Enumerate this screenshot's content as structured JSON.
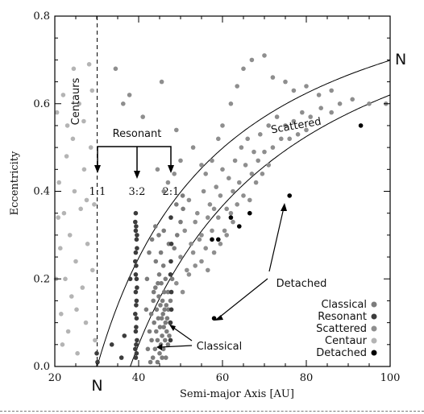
{
  "chart_data": {
    "type": "scatter",
    "title": "",
    "xlabel": "Semi-major Axis [AU]",
    "ylabel": "Eccentricity",
    "xlim": [
      20,
      100
    ],
    "ylim": [
      0.0,
      0.8
    ],
    "xticks": [
      "20",
      "40",
      "60",
      "80",
      "100"
    ],
    "yticks": [
      "0.0",
      "0.2",
      "0.4",
      "0.6",
      "0.8"
    ],
    "legend_position": "bottom-right",
    "neptune_a": 30.1,
    "series": [
      {
        "name": "Classical",
        "color": "#7c7c7c",
        "points": [
          [
            42.2,
            0.04
          ],
          [
            42.6,
            0.08
          ],
          [
            43.0,
            0.12
          ],
          [
            43.1,
            0.06
          ],
          [
            43.4,
            0.02
          ],
          [
            43.5,
            0.15
          ],
          [
            43.7,
            0.1
          ],
          [
            43.9,
            0.04
          ],
          [
            44.0,
            0.18
          ],
          [
            44.2,
            0.08
          ],
          [
            44.3,
            0.13
          ],
          [
            44.5,
            0.01
          ],
          [
            44.5,
            0.06
          ],
          [
            44.7,
            0.11
          ],
          [
            44.8,
            0.16
          ],
          [
            44.9,
            0.21
          ],
          [
            45.0,
            0.03
          ],
          [
            45.1,
            0.09
          ],
          [
            45.2,
            0.14
          ],
          [
            45.3,
            0.05
          ],
          [
            45.4,
            0.19
          ],
          [
            45.5,
            0.11
          ],
          [
            45.6,
            0.02
          ],
          [
            45.6,
            0.07
          ],
          [
            45.7,
            0.15
          ],
          [
            45.8,
            0.12
          ],
          [
            45.9,
            0.04
          ],
          [
            46.0,
            0.09
          ],
          [
            46.1,
            0.17
          ],
          [
            46.2,
            0.13
          ],
          [
            46.3,
            0.06
          ],
          [
            46.4,
            0.1
          ],
          [
            46.5,
            0.02
          ],
          [
            46.6,
            0.14
          ],
          [
            46.7,
            0.08
          ],
          [
            46.8,
            0.11
          ],
          [
            47.0,
            0.05
          ],
          [
            47.1,
            0.13
          ],
          [
            47.3,
            0.07
          ],
          [
            47.5,
            0.1
          ],
          [
            42.8,
            0.01
          ],
          [
            43.6,
            0.17
          ],
          [
            44.1,
            0.24
          ],
          [
            44.6,
            0.19
          ],
          [
            45.3,
            0.26
          ],
          [
            45.9,
            0.23
          ],
          [
            46.4,
            0.2
          ],
          [
            47.0,
            0.17
          ],
          [
            47.6,
            0.15
          ],
          [
            48.0,
            0.2
          ],
          [
            41.8,
            0.13
          ],
          [
            42.0,
            0.2
          ],
          [
            42.5,
            0.26
          ],
          [
            43.2,
            0.29
          ],
          [
            44.0,
            0.32
          ],
          [
            44.8,
            0.3
          ],
          [
            46.0,
            0.31
          ],
          [
            47.2,
            0.28
          ],
          [
            48.5,
            0.27
          ],
          [
            49.2,
            0.3
          ],
          [
            50.0,
            0.33
          ],
          [
            50.6,
            0.36
          ],
          [
            49.0,
            0.37
          ],
          [
            50.5,
            0.39
          ]
        ]
      },
      {
        "name": "Resonant",
        "color": "#3c3c3c",
        "points": [
          [
            39.3,
            0.02
          ],
          [
            39.4,
            0.05
          ],
          [
            39.3,
            0.08
          ],
          [
            39.5,
            0.11
          ],
          [
            39.4,
            0.14
          ],
          [
            39.3,
            0.17
          ],
          [
            39.5,
            0.2
          ],
          [
            39.4,
            0.23
          ],
          [
            39.3,
            0.26
          ],
          [
            39.5,
            0.29
          ],
          [
            39.4,
            0.32
          ],
          [
            39.3,
            0.35
          ],
          [
            39.6,
            0.06
          ],
          [
            39.2,
            0.12
          ],
          [
            39.6,
            0.18
          ],
          [
            39.2,
            0.24
          ],
          [
            39.6,
            0.3
          ],
          [
            39.2,
            0.33
          ],
          [
            39.5,
            0.03
          ],
          [
            39.3,
            0.21
          ],
          [
            39.6,
            0.27
          ],
          [
            39.4,
            0.09
          ],
          [
            39.5,
            0.15
          ],
          [
            39.2,
            0.04
          ],
          [
            39.3,
            0.31
          ],
          [
            47.6,
            0.06
          ],
          [
            47.8,
            0.13
          ],
          [
            47.6,
            0.21
          ],
          [
            47.8,
            0.28
          ],
          [
            47.7,
            0.34
          ],
          [
            47.6,
            0.1
          ],
          [
            47.8,
            0.17
          ],
          [
            47.7,
            0.24
          ],
          [
            30.0,
            0.03
          ],
          [
            30.2,
            0.01
          ],
          [
            33.6,
            0.05
          ],
          [
            35.9,
            0.02
          ],
          [
            36.6,
            0.07
          ],
          [
            38.0,
            0.2
          ]
        ]
      },
      {
        "name": "Scattered",
        "color": "#8e8e8e",
        "points": [
          [
            34.5,
            0.68
          ],
          [
            36.3,
            0.6
          ],
          [
            37.8,
            0.62
          ],
          [
            41.0,
            0.57
          ],
          [
            45.5,
            0.65
          ],
          [
            49.0,
            0.54
          ],
          [
            53.0,
            0.5
          ],
          [
            55.0,
            0.46
          ],
          [
            56.0,
            0.44
          ],
          [
            57.5,
            0.47
          ],
          [
            59.0,
            0.52
          ],
          [
            60.0,
            0.55
          ],
          [
            62.0,
            0.6
          ],
          [
            63.5,
            0.64
          ],
          [
            65.0,
            0.68
          ],
          [
            67.0,
            0.7
          ],
          [
            70.0,
            0.71
          ],
          [
            72.0,
            0.66
          ],
          [
            75.0,
            0.65
          ],
          [
            77.0,
            0.63
          ],
          [
            80.0,
            0.64
          ],
          [
            83.0,
            0.62
          ],
          [
            86.0,
            0.63
          ],
          [
            88.0,
            0.6
          ],
          [
            91.0,
            0.61
          ],
          [
            95.0,
            0.6
          ],
          [
            99.0,
            0.6
          ],
          [
            52.0,
            0.38
          ],
          [
            54.0,
            0.35
          ],
          [
            55.5,
            0.4
          ],
          [
            57.0,
            0.37
          ],
          [
            58.5,
            0.41
          ],
          [
            60.0,
            0.45
          ],
          [
            61.5,
            0.43
          ],
          [
            63.0,
            0.47
          ],
          [
            64.5,
            0.5
          ],
          [
            66.0,
            0.52
          ],
          [
            67.5,
            0.49
          ],
          [
            69.0,
            0.53
          ],
          [
            71.0,
            0.55
          ],
          [
            73.0,
            0.57
          ],
          [
            75.0,
            0.55
          ],
          [
            77.0,
            0.56
          ],
          [
            79.0,
            0.58
          ],
          [
            81.0,
            0.57
          ],
          [
            83.5,
            0.59
          ],
          [
            86.0,
            0.58
          ],
          [
            51.0,
            0.31
          ],
          [
            52.5,
            0.28
          ],
          [
            53.5,
            0.33
          ],
          [
            55.0,
            0.3
          ],
          [
            56.5,
            0.34
          ],
          [
            58.0,
            0.36
          ],
          [
            59.5,
            0.39
          ],
          [
            61.0,
            0.36
          ],
          [
            62.5,
            0.4
          ],
          [
            64.0,
            0.42
          ],
          [
            65.5,
            0.46
          ],
          [
            67.0,
            0.44
          ],
          [
            68.5,
            0.47
          ],
          [
            70.0,
            0.49
          ],
          [
            72.0,
            0.5
          ],
          [
            74.0,
            0.52
          ],
          [
            76.0,
            0.52
          ],
          [
            78.0,
            0.53
          ],
          [
            80.0,
            0.54
          ],
          [
            50.0,
            0.25
          ],
          [
            51.5,
            0.22
          ],
          [
            53.0,
            0.26
          ],
          [
            54.5,
            0.29
          ],
          [
            56.0,
            0.27
          ],
          [
            57.5,
            0.31
          ],
          [
            59.0,
            0.34
          ],
          [
            60.5,
            0.31
          ],
          [
            62.0,
            0.35
          ],
          [
            63.5,
            0.37
          ],
          [
            65.0,
            0.39
          ],
          [
            66.5,
            0.38
          ],
          [
            68.0,
            0.42
          ],
          [
            69.5,
            0.44
          ],
          [
            71.0,
            0.46
          ],
          [
            49.0,
            0.19
          ],
          [
            50.5,
            0.17
          ],
          [
            52.0,
            0.21
          ],
          [
            53.5,
            0.23
          ],
          [
            55.0,
            0.24
          ],
          [
            56.5,
            0.22
          ],
          [
            58.0,
            0.26
          ],
          [
            59.5,
            0.28
          ],
          [
            61.0,
            0.3
          ],
          [
            62.5,
            0.33
          ],
          [
            48.5,
            0.44
          ],
          [
            50.0,
            0.47
          ],
          [
            47.0,
            0.42
          ],
          [
            46.0,
            0.4
          ],
          [
            44.5,
            0.45
          ]
        ]
      },
      {
        "name": "Centaur",
        "color": "#b4b4b4",
        "points": [
          [
            20.5,
            0.58
          ],
          [
            21.0,
            0.42
          ],
          [
            21.3,
            0.27
          ],
          [
            21.5,
            0.12
          ],
          [
            21.8,
            0.05
          ],
          [
            22.2,
            0.35
          ],
          [
            22.5,
            0.2
          ],
          [
            22.8,
            0.48
          ],
          [
            23.2,
            0.08
          ],
          [
            23.6,
            0.3
          ],
          [
            24.0,
            0.16
          ],
          [
            24.3,
            0.52
          ],
          [
            24.7,
            0.4
          ],
          [
            25.0,
            0.24
          ],
          [
            25.4,
            0.03
          ],
          [
            25.8,
            0.6
          ],
          [
            26.2,
            0.36
          ],
          [
            26.6,
            0.18
          ],
          [
            27.0,
            0.45
          ],
          [
            27.4,
            0.1
          ],
          [
            27.8,
            0.28
          ],
          [
            28.2,
            0.69
          ],
          [
            28.6,
            0.5
          ],
          [
            29.0,
            0.22
          ],
          [
            29.4,
            0.37
          ],
          [
            20.8,
            0.34
          ],
          [
            22.0,
            0.62
          ],
          [
            24.5,
            0.68
          ],
          [
            26.9,
            0.56
          ],
          [
            28.9,
            0.63
          ],
          [
            20.3,
            0.2
          ],
          [
            23.0,
            0.55
          ],
          [
            25.2,
            0.13
          ],
          [
            27.6,
            0.38
          ],
          [
            29.6,
            0.06
          ]
        ]
      },
      {
        "name": "Detached",
        "color": "#000000",
        "points": [
          [
            58.0,
            0.11
          ],
          [
            57.5,
            0.29
          ],
          [
            59.0,
            0.29
          ],
          [
            62.0,
            0.34
          ],
          [
            64.0,
            0.32
          ],
          [
            66.5,
            0.35
          ],
          [
            76.0,
            0.39
          ],
          [
            93.0,
            0.55
          ]
        ]
      }
    ],
    "boundary_curves": [
      {
        "label": "N",
        "q_au": 30.1
      },
      {
        "q_au": 38.0
      }
    ],
    "annotations": {
      "centaurs": "Centaurs",
      "resonant": "Resonant",
      "res_1_1": "1:1",
      "res_3_2": "3:2",
      "res_2_1": "2:1",
      "scattered": "Scattered",
      "detached": "Detached",
      "classical": "Classical",
      "n_curve": "N",
      "n_axis": "N"
    }
  }
}
